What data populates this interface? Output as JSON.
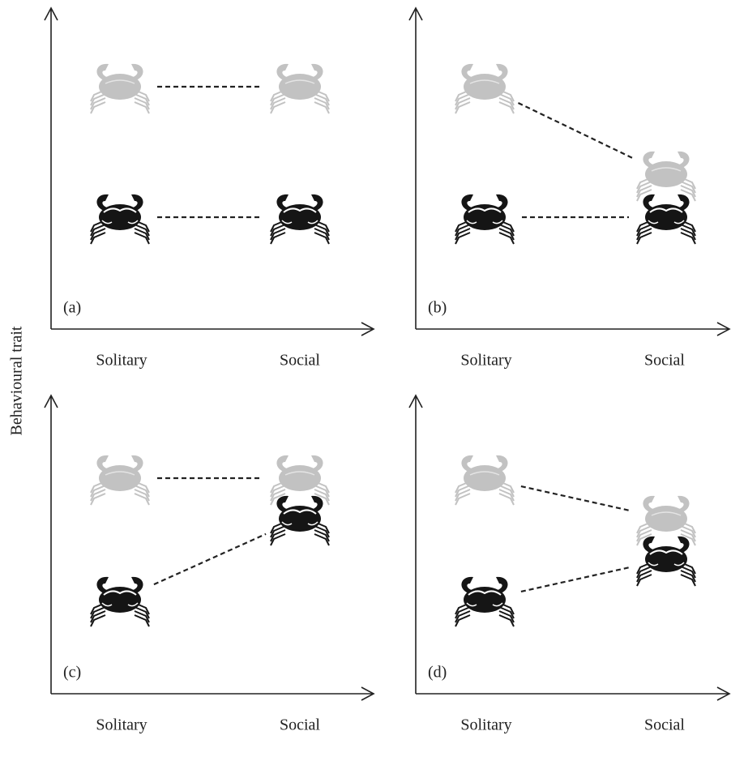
{
  "y_axis_label": "Behavioural trait",
  "panels": [
    {
      "label": "(a)",
      "x_labels": [
        "Solitary",
        "Social"
      ]
    },
    {
      "label": "(b)",
      "x_labels": [
        "Solitary",
        "Social"
      ]
    },
    {
      "label": "(c)",
      "x_labels": [
        "Solitary",
        "Social"
      ]
    },
    {
      "label": "(d)",
      "x_labels": [
        "Solitary",
        "Social"
      ]
    }
  ]
}
